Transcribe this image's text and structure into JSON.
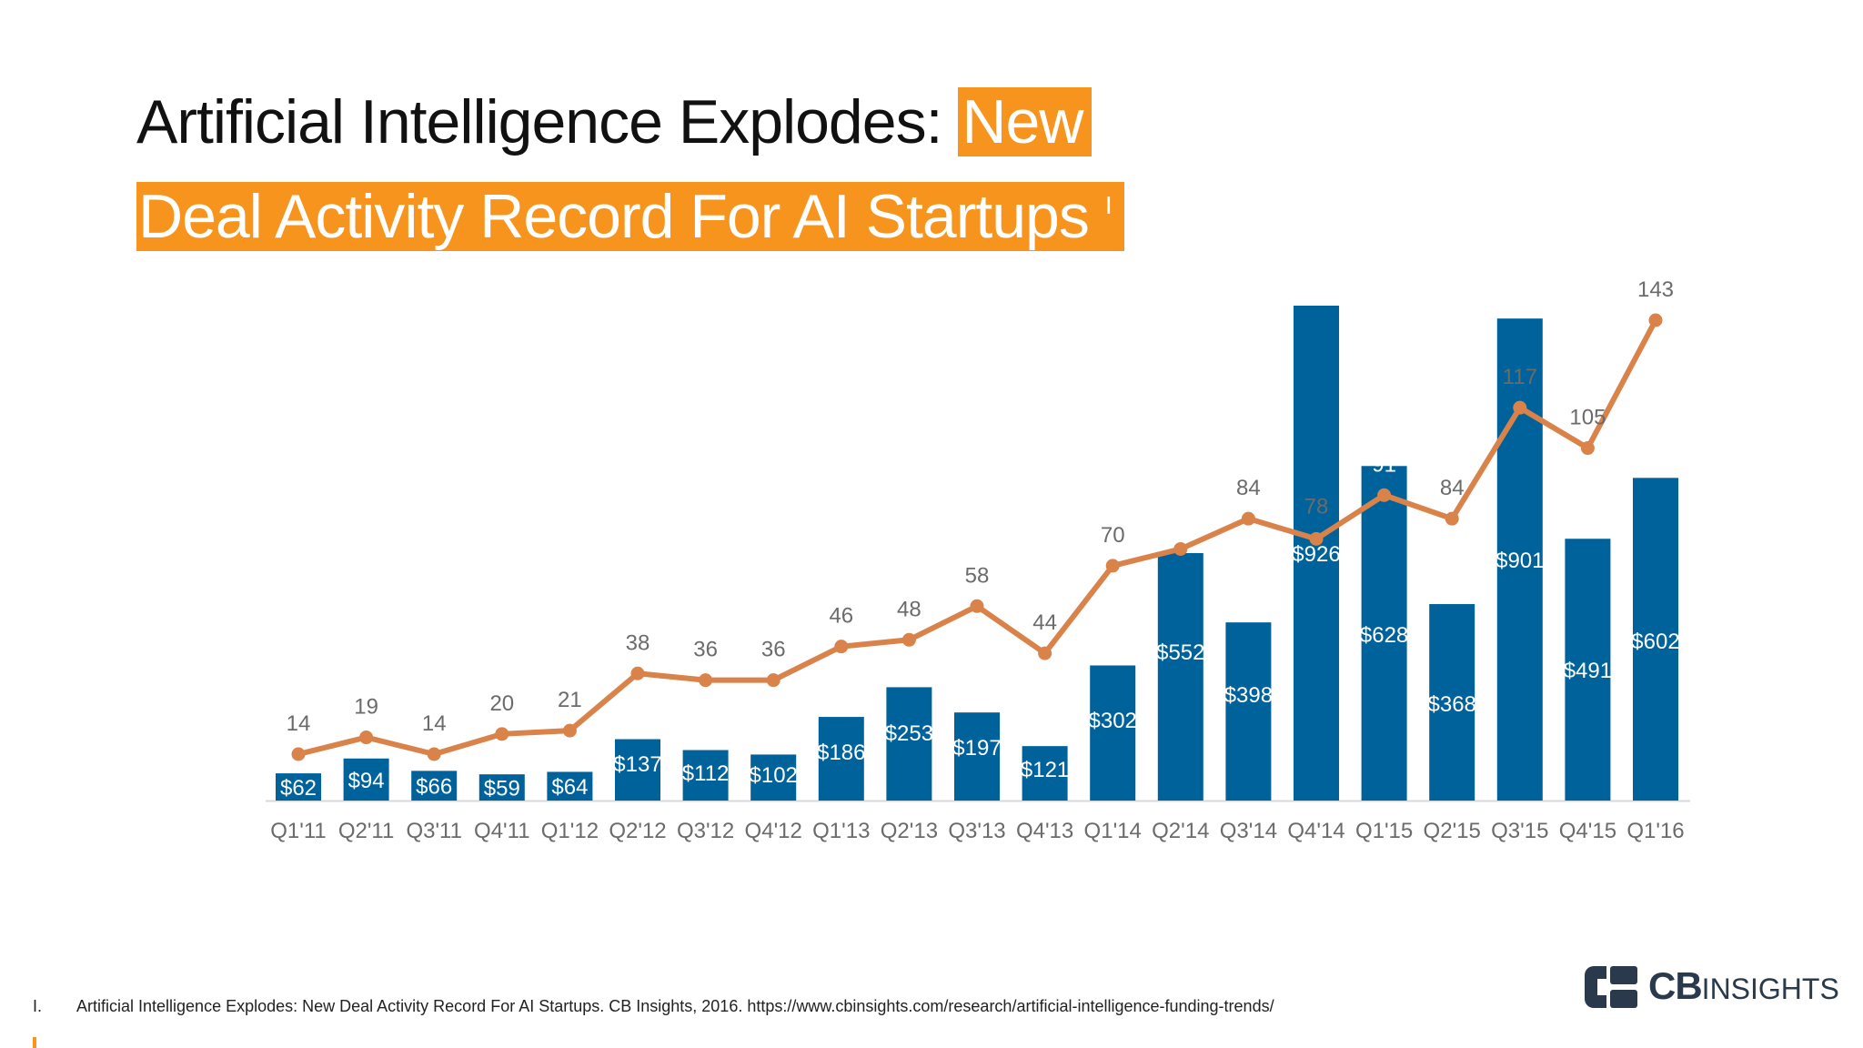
{
  "title": {
    "part1": "Artificial Intelligence Explodes:",
    "highlight1": "New",
    "highlight2": "Deal Activity Record For AI Startups",
    "footnote_ref": "I"
  },
  "chart_data": {
    "type": "bar",
    "categories": [
      "Q1'11",
      "Q2'11",
      "Q3'11",
      "Q4'11",
      "Q1'12",
      "Q2'12",
      "Q3'12",
      "Q4'12",
      "Q1'13",
      "Q2'13",
      "Q3'13",
      "Q4'13",
      "Q1'14",
      "Q2'14",
      "Q3'14",
      "Q4'14",
      "Q1'15",
      "Q2'15",
      "Q3'15",
      "Q4'15",
      "Q1'16"
    ],
    "series": [
      {
        "type": "bar",
        "values": [
          62,
          94,
          66,
          59,
          64,
          137,
          112,
          102,
          186,
          253,
          197,
          121,
          302,
          552,
          398,
          926,
          628,
          368,
          901,
          491,
          602
        ],
        "labels": [
          "$62",
          "$94",
          "$66",
          "$59",
          "$64",
          "$137",
          "$112",
          "$102",
          "$186",
          "$253",
          "$197",
          "$121",
          "$302",
          "$552",
          "$398",
          "$926",
          "$628",
          "$368",
          "$901",
          "$491",
          "$602"
        ],
        "bar_heights_rel": [
          0.055,
          0.085,
          0.06,
          0.053,
          0.058,
          0.124,
          0.102,
          0.093,
          0.169,
          0.229,
          0.178,
          0.11,
          0.273,
          0.5,
          0.36,
          1.0,
          0.676,
          0.397,
          0.974,
          0.529,
          0.652
        ],
        "color": "#00629b"
      },
      {
        "type": "line",
        "values": [
          14,
          19,
          14,
          20,
          21,
          38,
          36,
          36,
          46,
          48,
          58,
          44,
          70,
          75,
          84,
          78,
          91,
          84,
          117,
          105,
          143
        ],
        "color": "#d9824a"
      }
    ],
    "ylim_line": [
      0,
      150
    ],
    "grid": false,
    "legend": "none"
  },
  "footnote": {
    "number": "I.",
    "text": "Artificial Intelligence Explodes: New Deal Activity Record For AI Startups. CB Insights, 2016. https://www.cbinsights.com/research/artificial-intelligence-funding-trends/"
  },
  "logo": {
    "cb": "CB",
    "insights": "INSIGHTS"
  },
  "colors": {
    "accent": "#f7941d",
    "bar": "#00629b",
    "line": "#d9824a",
    "label_gray": "#6b6b6b"
  }
}
